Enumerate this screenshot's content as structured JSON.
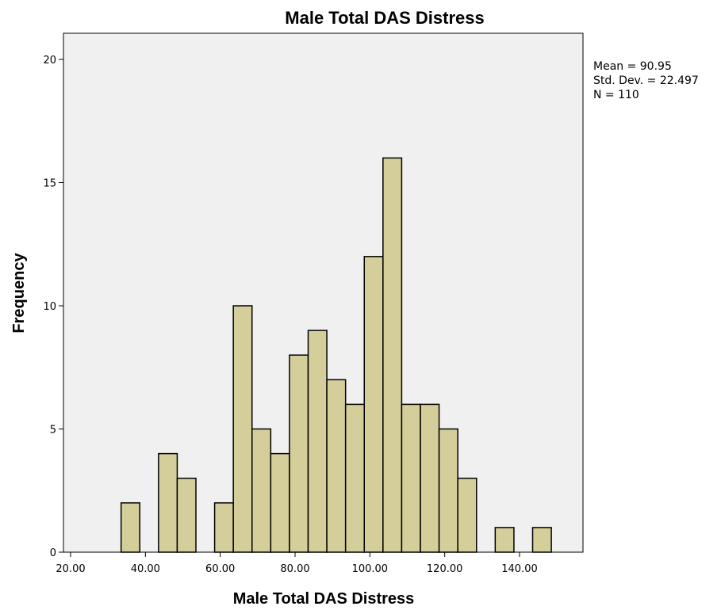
{
  "chart_data": {
    "type": "bar",
    "subtype": "histogram",
    "title": "Male Total DAS Distress",
    "xlabel": "Male Total DAS Distress",
    "ylabel": "Frequency",
    "xlim": [
      18.5,
      158
    ],
    "ylim": [
      0,
      21
    ],
    "xticks": [
      20,
      40,
      60,
      80,
      100,
      120,
      140
    ],
    "xtick_labels": [
      "20.00",
      "40.00",
      "60.00",
      "80.00",
      "100.00",
      "120.00",
      "140.00"
    ],
    "yticks": [
      0,
      5,
      10,
      15,
      20
    ],
    "ytick_labels": [
      "0",
      "5",
      "10",
      "15",
      "20"
    ],
    "bin_width": 5,
    "bin_starts": [
      33.5,
      43.5,
      48.5,
      58.5,
      63.5,
      68.5,
      73.5,
      78.5,
      83.5,
      88.5,
      93.5,
      98.5,
      103.5,
      108.5,
      113.5,
      118.5,
      123.5,
      133.5,
      143.5
    ],
    "values": [
      2,
      4,
      3,
      2,
      10,
      5,
      4,
      8,
      9,
      7,
      6,
      12,
      16,
      6,
      6,
      5,
      3,
      1,
      1
    ],
    "bar_color": "#d4cf9a",
    "plot_background": "#f0f0f0",
    "grid": false,
    "legend": "none",
    "stats": [
      "Mean = 90.95",
      "Std. Dev. = 22.497",
      "N = 110"
    ],
    "stats_position": "top-right"
  }
}
